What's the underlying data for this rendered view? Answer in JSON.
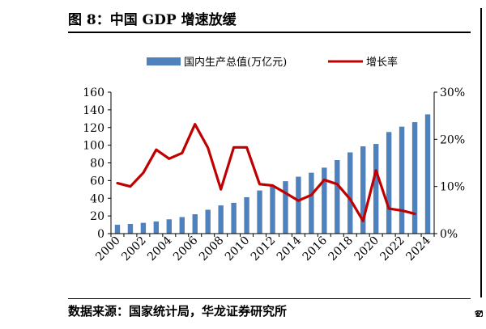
{
  "header": {
    "title": "图 8：中国 GDP 增速放缓"
  },
  "footer": {
    "source": "数据来源：国家统计局，华龙证券研究所"
  },
  "edge": {
    "glyph": "数"
  },
  "colors": {
    "bar": "#4f81bd",
    "line": "#c00000",
    "axis": "#000000"
  },
  "chart_data": {
    "type": "bar",
    "title": "",
    "x": [
      "2000",
      "2001",
      "2002",
      "2003",
      "2004",
      "2005",
      "2006",
      "2007",
      "2008",
      "2009",
      "2010",
      "2011",
      "2012",
      "2013",
      "2014",
      "2015",
      "2016",
      "2017",
      "2018",
      "2019",
      "2020",
      "2021",
      "2022",
      "2023",
      "2024"
    ],
    "x_tick_labels": [
      "2000",
      "2002",
      "2004",
      "2006",
      "2008",
      "2010",
      "2012",
      "2014",
      "2016",
      "2018",
      "2020",
      "2022",
      "2024"
    ],
    "series": [
      {
        "name": "国内生产总值(万亿元)",
        "type": "bar",
        "axis": "left",
        "values": [
          10.0,
          11.0,
          12.2,
          13.7,
          16.2,
          18.7,
          21.9,
          27.0,
          31.9,
          34.9,
          41.2,
          48.8,
          53.9,
          59.3,
          64.4,
          68.9,
          74.6,
          83.2,
          91.9,
          98.7,
          101.4,
          114.9,
          121.0,
          126.1,
          134.9
        ]
      },
      {
        "name": "增长率",
        "type": "line",
        "axis": "right",
        "values": [
          10.7,
          10.0,
          12.9,
          17.8,
          15.9,
          17.1,
          23.2,
          18.2,
          9.4,
          18.3,
          18.3,
          10.5,
          10.2,
          8.6,
          7.0,
          8.2,
          11.4,
          10.5,
          7.3,
          2.7,
          13.4,
          5.3,
          4.9,
          4.2,
          null
        ]
      }
    ],
    "ylim": [
      0,
      160
    ],
    "y_ticks": [
      "0",
      "20",
      "40",
      "60",
      "80",
      "100",
      "120",
      "140",
      "160"
    ],
    "y2lim": [
      0,
      30
    ],
    "y2_ticks": [
      "0%",
      "10%",
      "20%",
      "30%"
    ],
    "legend": "top-center",
    "grid": false
  }
}
